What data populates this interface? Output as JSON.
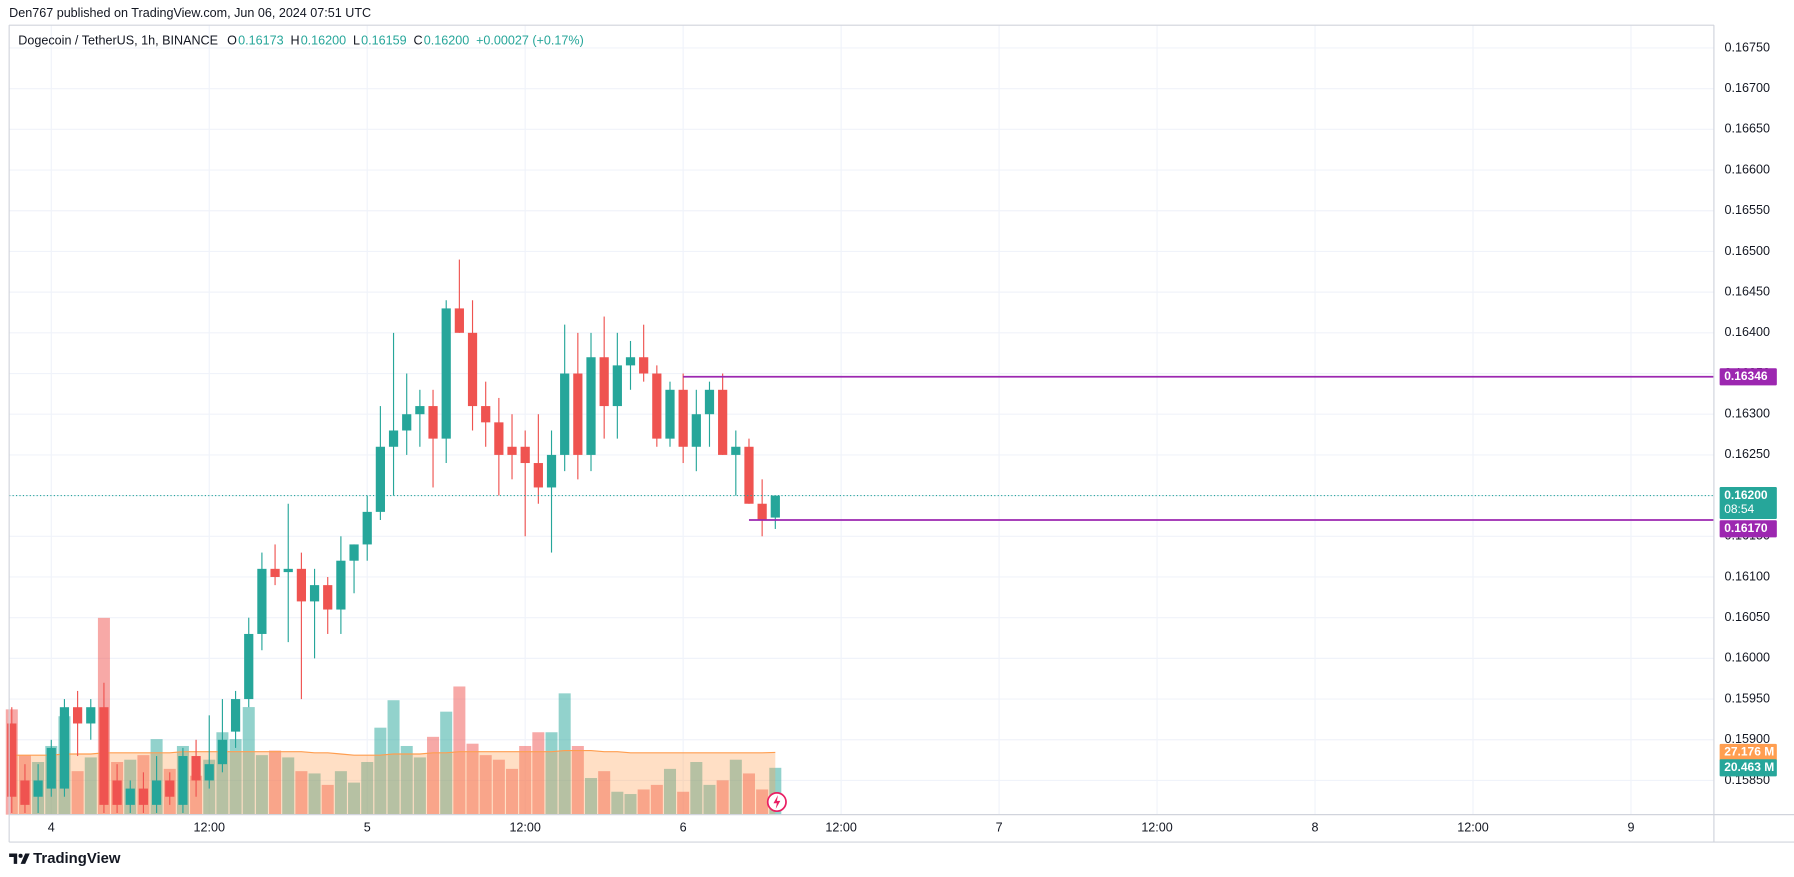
{
  "publisher": "Den767 published on TradingView.com, Jun 06, 2024 07:51 UTC",
  "brand": "TradingView",
  "chart_data": {
    "type": "candlestick",
    "title": "Dogecoin / TetherUS, 1h, BINANCE",
    "stats": [
      {
        "label": "O",
        "text": "0.16173"
      },
      {
        "label": "H",
        "text": "0.16200"
      },
      {
        "label": "L",
        "text": "0.16159"
      },
      {
        "label": "C",
        "text": "0.16200"
      }
    ],
    "change": "+0.00027 (+0.17%)",
    "up_color": "#26a69a",
    "down_color": "#ef5350",
    "open": [
      0.1592,
      0.1585,
      0.1583,
      0.1584,
      0.1584,
      0.1594,
      0.1592,
      0.1594,
      0.1585,
      0.1582,
      0.1584,
      0.1582,
      0.1585,
      0.1582,
      0.1588,
      0.1585,
      0.1587,
      0.1591,
      0.1595,
      0.1603,
      0.1611,
      0.16106,
      0.1611,
      0.1607,
      0.1609,
      0.1606,
      0.1612,
      0.1614,
      0.1618,
      0.1626,
      0.1628,
      0.163,
      0.1631,
      0.1627,
      0.1643,
      0.164,
      0.1631,
      0.1629,
      0.1626,
      0.1626,
      0.1624,
      0.1621,
      0.1625,
      0.1635,
      0.1625,
      0.1637,
      0.1631,
      0.1636,
      0.1637,
      0.1635,
      0.1627,
      0.1633,
      0.1626,
      0.163,
      0.1633,
      0.1625,
      0.1626,
      0.1619,
      0.16173
    ],
    "high": [
      0.1594,
      0.1587,
      0.1587,
      0.159,
      0.1595,
      0.1596,
      0.1595,
      0.1597,
      0.1587,
      0.1585,
      0.1586,
      0.1588,
      0.1586,
      0.1589,
      0.159,
      0.1593,
      0.1595,
      0.1596,
      0.1605,
      0.1613,
      0.1614,
      0.1619,
      0.1613,
      0.1611,
      0.161,
      0.1615,
      0.1614,
      0.162,
      0.1631,
      0.164,
      0.1635,
      0.1633,
      0.1633,
      0.1644,
      0.1649,
      0.1644,
      0.1634,
      0.1632,
      0.163,
      0.1628,
      0.163,
      0.1628,
      0.1641,
      0.164,
      0.164,
      0.1642,
      0.164,
      0.1639,
      0.1641,
      0.1636,
      0.1634,
      0.1635,
      0.1633,
      0.1634,
      0.1635,
      0.1628,
      0.1627,
      0.1622,
      0.162
    ],
    "low": [
      0.1581,
      0.1581,
      0.1581,
      0.1583,
      0.1583,
      0.1588,
      0.159,
      0.1581,
      0.1581,
      0.1581,
      0.1581,
      0.1581,
      0.1582,
      0.1581,
      0.1583,
      0.1584,
      0.1586,
      0.1589,
      0.1594,
      0.1601,
      0.1609,
      0.1602,
      0.1595,
      0.16,
      0.1603,
      0.1603,
      0.1608,
      0.1612,
      0.1617,
      0.162,
      0.1625,
      0.1626,
      0.1621,
      0.1624,
      0.164,
      0.1628,
      0.1626,
      0.162,
      0.1622,
      0.1615,
      0.1619,
      0.1613,
      0.1623,
      0.1622,
      0.1623,
      0.1627,
      0.1627,
      0.1633,
      0.1634,
      0.1626,
      0.1626,
      0.1624,
      0.1623,
      0.1626,
      0.1625,
      0.162,
      0.1619,
      0.1615,
      0.16159
    ],
    "close": [
      0.1583,
      0.1582,
      0.1585,
      0.1589,
      0.1594,
      0.1592,
      0.1594,
      0.1582,
      0.1582,
      0.1584,
      0.1582,
      0.1585,
      0.1583,
      0.1588,
      0.1585,
      0.1587,
      0.159,
      0.1595,
      0.1603,
      0.1611,
      0.161,
      0.1611,
      0.1607,
      0.1609,
      0.1606,
      0.1612,
      0.1614,
      0.1618,
      0.1626,
      0.1628,
      0.163,
      0.1631,
      0.1627,
      0.1643,
      0.164,
      0.1631,
      0.1629,
      0.1625,
      0.1625,
      0.1624,
      0.1621,
      0.1625,
      0.1635,
      0.1625,
      0.1637,
      0.1631,
      0.1636,
      0.1637,
      0.1635,
      0.1627,
      0.1633,
      0.1626,
      0.163,
      0.1633,
      0.1625,
      0.1626,
      0.1619,
      0.1617,
      0.162
    ],
    "volume": {
      "values": [
        46,
        26,
        23,
        30,
        43,
        19,
        25,
        86,
        23,
        24,
        26,
        33,
        20,
        30,
        17,
        24,
        36,
        33,
        47,
        26,
        28,
        25,
        19,
        18,
        13,
        19,
        14,
        23,
        38,
        50,
        30,
        25,
        34,
        45,
        56,
        31,
        26,
        24,
        20,
        30,
        36,
        36,
        53,
        30,
        16,
        19,
        10,
        9,
        11,
        13,
        20,
        10,
        23,
        13,
        15,
        24,
        18,
        11,
        20.463
      ],
      "ma": [
        26,
        26,
        26,
        26,
        26.5,
        26.5,
        26.5,
        27,
        27,
        27,
        27,
        27,
        27,
        27.5,
        27.5,
        27.5,
        27.5,
        27.5,
        27.5,
        27.5,
        27.5,
        27.5,
        27.5,
        27,
        27,
        26.5,
        26,
        26,
        26,
        26.5,
        26.5,
        26.5,
        27,
        27,
        27.5,
        27.5,
        27.5,
        27.5,
        27.5,
        27.5,
        27.5,
        27.5,
        28,
        28,
        28,
        27.5,
        27.5,
        27,
        27,
        27,
        27,
        27,
        27,
        27,
        27,
        27,
        27,
        27,
        27.176
      ],
      "ma_tag": "27.176 M",
      "last_tag": "20.463 M",
      "ma_color": "#ff9e50",
      "ylim": [
        0,
        170
      ]
    },
    "last_price_label": "0.16200",
    "countdown": "08:54",
    "levels": [
      {
        "price": 0.16346,
        "from": 51,
        "color": "#9c27b0"
      },
      {
        "price": 0.1617,
        "price_label": "0.16170",
        "from": 56,
        "color": "#9c27b0"
      }
    ],
    "xlim": [
      -0.2,
      129.3
    ],
    "xticks": [
      {
        "value": 3,
        "label": "4"
      },
      {
        "value": 15,
        "label": "12:00"
      },
      {
        "value": 27,
        "label": "5"
      },
      {
        "value": 39,
        "label": "12:00"
      },
      {
        "value": 51,
        "label": "6"
      },
      {
        "value": 63,
        "label": "12:00"
      },
      {
        "value": 75,
        "label": "7"
      },
      {
        "value": 87,
        "label": "12:00"
      },
      {
        "value": 99,
        "label": "8"
      },
      {
        "value": 111,
        "label": "12:00"
      },
      {
        "value": 123,
        "label": "9"
      }
    ],
    "ylim": [
      0.15808,
      0.16778
    ],
    "yticks": [
      {
        "value": 0.1585,
        "label": "0.15850"
      },
      {
        "value": 0.159,
        "label": "0.15900"
      },
      {
        "value": 0.1595,
        "label": "0.15950"
      },
      {
        "value": 0.16,
        "label": "0.16000"
      },
      {
        "value": 0.1605,
        "label": "0.16050"
      },
      {
        "value": 0.161,
        "label": "0.16100"
      },
      {
        "value": 0.1615,
        "label": "0.16150"
      },
      {
        "value": 0.162,
        "label": "0.16200"
      },
      {
        "value": 0.1625,
        "label": "0.16250"
      },
      {
        "value": 0.163,
        "label": "0.16300"
      },
      {
        "value": 0.1635,
        "label": "0.16350"
      },
      {
        "value": 0.164,
        "label": "0.16400"
      },
      {
        "value": 0.1645,
        "label": "0.16450"
      },
      {
        "value": 0.165,
        "label": "0.16500"
      },
      {
        "value": 0.1655,
        "label": "0.16550"
      },
      {
        "value": 0.166,
        "label": "0.16600"
      },
      {
        "value": 0.1665,
        "label": "0.16650"
      },
      {
        "value": 0.167,
        "label": "0.16700"
      },
      {
        "value": 0.1675,
        "label": "0.16750"
      }
    ],
    "grid": true
  }
}
